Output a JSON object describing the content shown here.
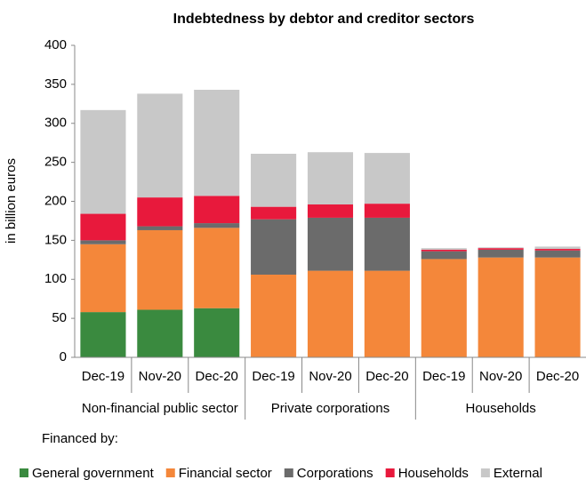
{
  "chart_data": {
    "type": "stacked_bar",
    "title": "Indebtedness by debtor and creditor sectors",
    "y_label": "in billion euros",
    "legend_title": "Financed by:",
    "groups": [
      {
        "name": "Non-financial public sector",
        "categories": [
          "Dec-19",
          "Nov-20",
          "Dec-20"
        ]
      },
      {
        "name": "Private corporations",
        "categories": [
          "Dec-19",
          "Nov-20",
          "Dec-20"
        ]
      },
      {
        "name": "Households",
        "categories": [
          "Dec-19",
          "Nov-20",
          "Dec-20"
        ]
      }
    ],
    "series": [
      {
        "name": "General government",
        "color": "#3a8a3f",
        "values": [
          58,
          61,
          63,
          0,
          0,
          0,
          0,
          0,
          0
        ]
      },
      {
        "name": "Financial sector",
        "color": "#f4873a",
        "values": [
          87,
          102,
          103,
          106,
          111,
          111,
          126,
          128,
          128
        ]
      },
      {
        "name": "Corporations",
        "color": "#6b6b6b",
        "values": [
          5,
          5,
          6,
          71,
          68,
          68,
          10,
          10,
          9
        ]
      },
      {
        "name": "Households",
        "color": "#e8193c",
        "values": [
          34,
          37,
          35,
          16,
          17,
          18,
          2,
          2,
          2
        ]
      },
      {
        "name": "External",
        "color": "#c8c8c8",
        "values": [
          133,
          133,
          136,
          68,
          67,
          65,
          2,
          1,
          3
        ]
      }
    ],
    "ylim": [
      0,
      400
    ],
    "yticks": [
      0,
      50,
      100,
      150,
      200,
      250,
      300,
      350,
      400
    ],
    "grid": false
  }
}
